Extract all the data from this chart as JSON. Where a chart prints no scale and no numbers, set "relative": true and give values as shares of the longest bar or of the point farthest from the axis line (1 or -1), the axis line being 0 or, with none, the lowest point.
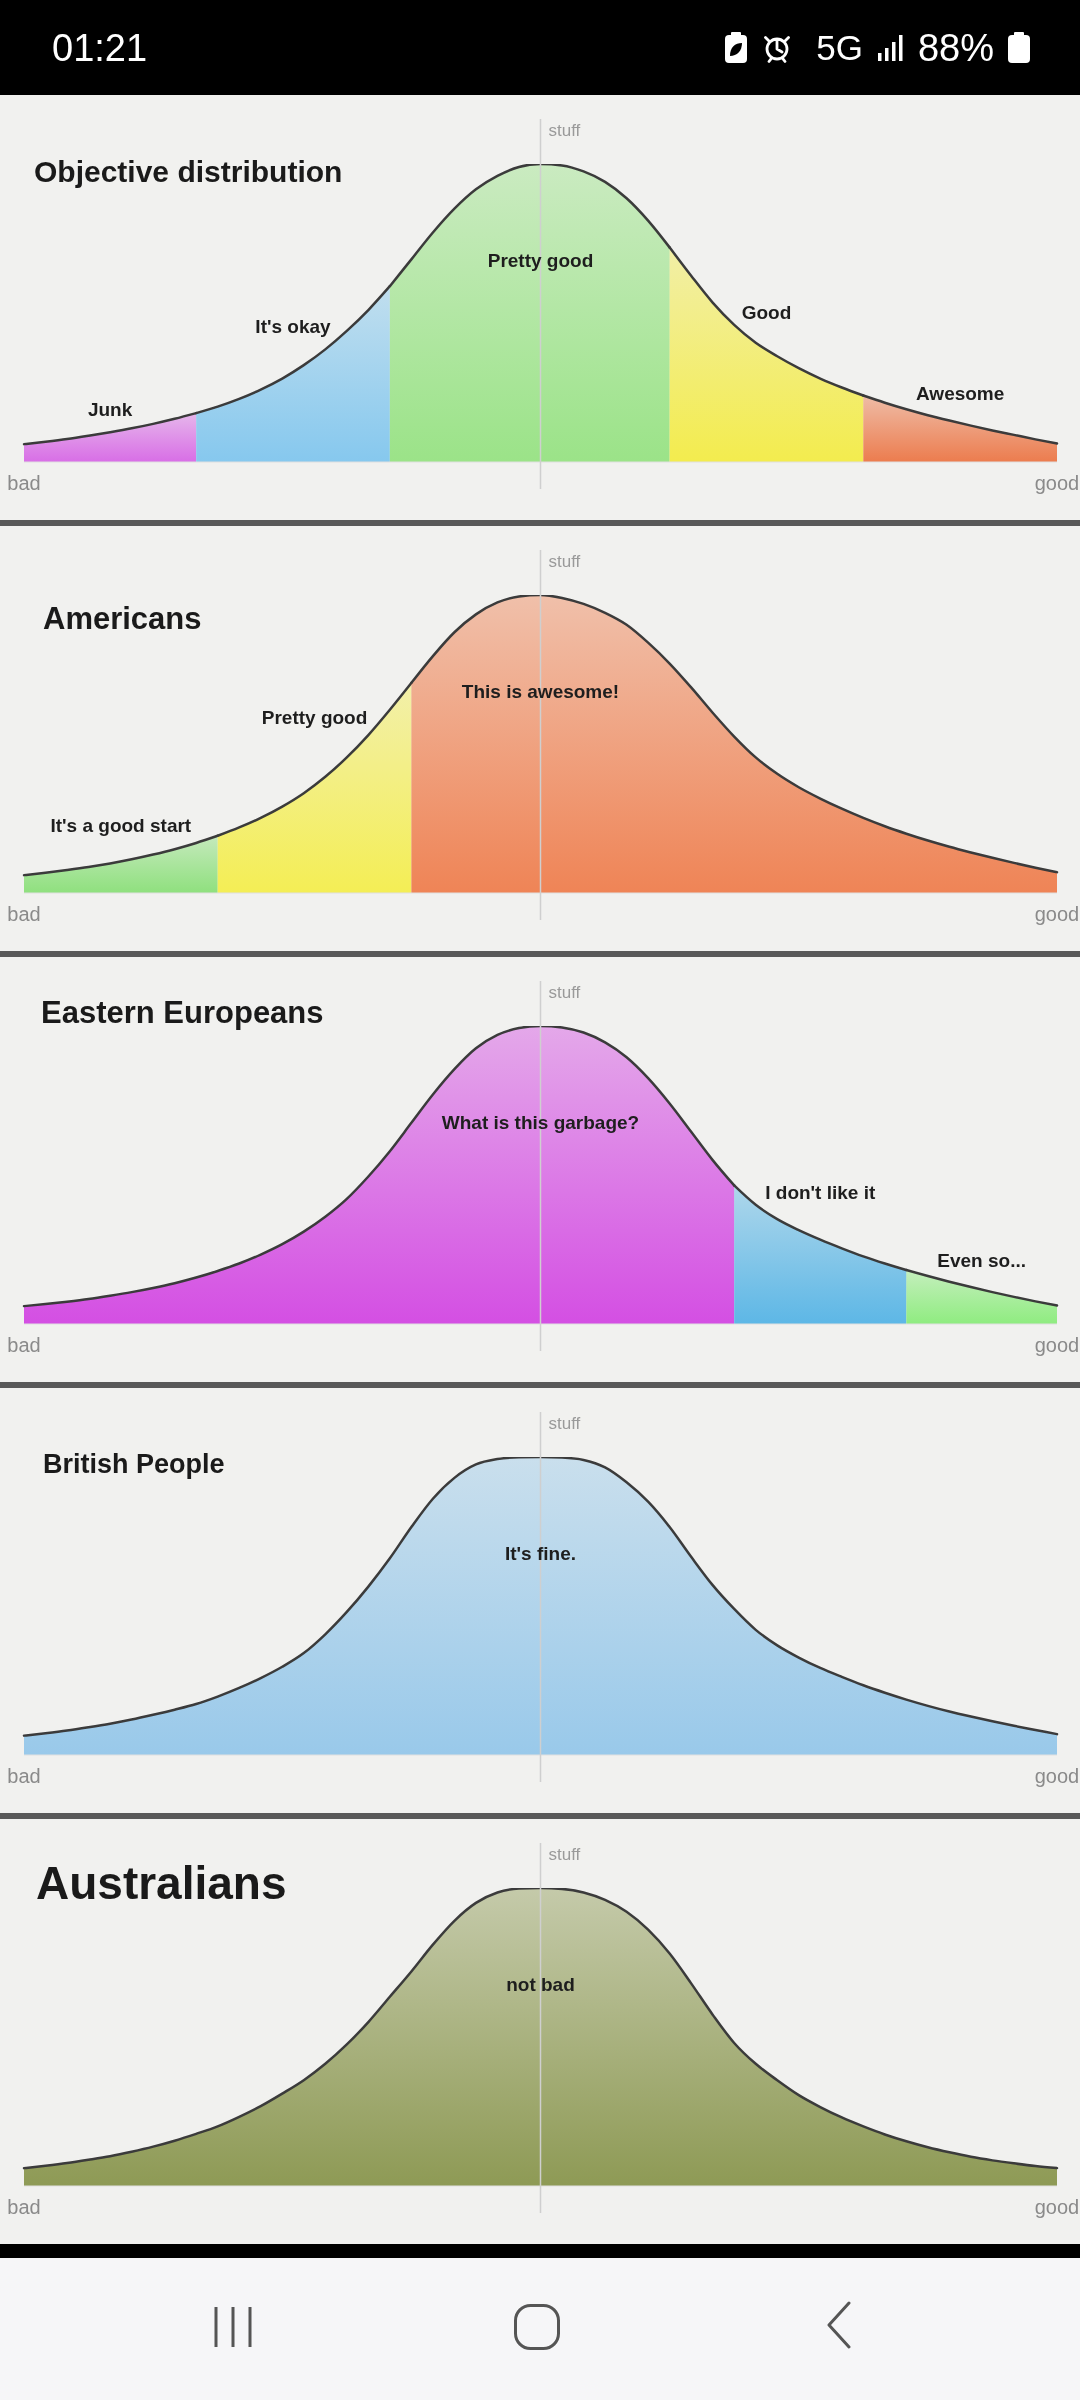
{
  "chart_data": [
    {
      "type": "area",
      "title": "Objective distribution",
      "ylabel": "stuff",
      "relative": true,
      "annotations": [
        "01:21",
        "5G",
        "88%"
      ],
      "categories": [
        "bad",
        null,
        null,
        null,
        null,
        null,
        null,
        null,
        null,
        null,
        null,
        null,
        null,
        null,
        null,
        null,
        null,
        null,
        null,
        null,
        null,
        null,
        null,
        null,
        null,
        null,
        null,
        null,
        null,
        null,
        null,
        null,
        null,
        null,
        null,
        null,
        null,
        null,
        null,
        null,
        null,
        null,
        null,
        null,
        null,
        null,
        null,
        null,
        "good"
      ],
      "series": [
        {
          "name": "Junk",
          "color": "#d86ee6",
          "values": [
            0.06,
            0.068,
            0.077,
            0.088,
            0.1,
            0.113,
            0.128,
            0.145,
            0.164,
            null,
            null,
            null,
            null,
            null,
            null,
            null,
            null,
            null,
            null,
            null,
            null,
            null,
            null,
            null,
            null,
            null,
            null,
            null,
            null,
            null,
            null,
            null,
            null,
            null,
            null,
            null,
            null,
            null,
            null,
            null,
            null,
            null,
            null,
            null,
            null,
            null,
            null,
            null,
            null
          ]
        },
        {
          "name": "It's okay",
          "color": "#86c8ee",
          "values": [
            null,
            null,
            null,
            null,
            null,
            null,
            null,
            null,
            0.164,
            0.186,
            0.212,
            0.243,
            0.28,
            0.325,
            0.378,
            0.44,
            0.51,
            0.59,
            null,
            null,
            null,
            null,
            null,
            null,
            null,
            null,
            null,
            null,
            null,
            null,
            null,
            null,
            null,
            null,
            null,
            null,
            null,
            null,
            null,
            null,
            null,
            null,
            null,
            null,
            null,
            null,
            null,
            null,
            null
          ]
        },
        {
          "name": "Pretty good",
          "color": "#9be388",
          "values": [
            null,
            null,
            null,
            null,
            null,
            null,
            null,
            null,
            null,
            null,
            null,
            null,
            null,
            null,
            null,
            null,
            null,
            0.59,
            0.68,
            0.77,
            0.85,
            0.915,
            0.96,
            0.99,
            1,
            0.995,
            0.975,
            0.94,
            0.885,
            0.81,
            0.72,
            null,
            null,
            null,
            null,
            null,
            null,
            null,
            null,
            null,
            null,
            null,
            null,
            null,
            null,
            null,
            null,
            null,
            null
          ]
        },
        {
          "name": "Good",
          "color": "#f3ec4e",
          "values": [
            null,
            null,
            null,
            null,
            null,
            null,
            null,
            null,
            null,
            null,
            null,
            null,
            null,
            null,
            null,
            null,
            null,
            null,
            null,
            null,
            null,
            null,
            null,
            null,
            null,
            null,
            null,
            null,
            null,
            null,
            0.72,
            0.625,
            0.535,
            0.46,
            0.4,
            0.355,
            0.315,
            0.28,
            0.25,
            0.223,
            null,
            null,
            null,
            null,
            null,
            null,
            null,
            null,
            null
          ]
        },
        {
          "name": "Awesome",
          "color": "#ec7c4e",
          "values": [
            null,
            null,
            null,
            null,
            null,
            null,
            null,
            null,
            null,
            null,
            null,
            null,
            null,
            null,
            null,
            null,
            null,
            null,
            null,
            null,
            null,
            null,
            null,
            null,
            null,
            null,
            null,
            null,
            null,
            null,
            null,
            null,
            null,
            null,
            null,
            null,
            null,
            null,
            null,
            0.223,
            0.199,
            0.177,
            0.157,
            0.139,
            0.122,
            0.106,
            0.091,
            0.076,
            0.062
          ]
        }
      ]
    },
    {
      "type": "area",
      "title": "Americans",
      "ylabel": "stuff",
      "relative": true,
      "categories": [
        "bad",
        null,
        null,
        null,
        null,
        null,
        null,
        null,
        null,
        null,
        null,
        null,
        null,
        null,
        null,
        null,
        null,
        null,
        null,
        null,
        null,
        null,
        null,
        null,
        null,
        null,
        null,
        null,
        null,
        null,
        null,
        null,
        null,
        null,
        null,
        null,
        null,
        null,
        null,
        null,
        null,
        null,
        null,
        null,
        null,
        null,
        null,
        null,
        "good"
      ],
      "series": [
        {
          "name": "It's a good start",
          "color": "#8fe07e",
          "values": [
            0.06,
            0.068,
            0.077,
            0.087,
            0.099,
            0.113,
            0.129,
            0.147,
            0.168,
            0.192,
            null,
            null,
            null,
            null,
            null,
            null,
            null,
            null,
            null,
            null,
            null,
            null,
            null,
            null,
            null,
            null,
            null,
            null,
            null,
            null,
            null,
            null,
            null,
            null,
            null,
            null,
            null,
            null,
            null,
            null,
            null,
            null,
            null,
            null,
            null,
            null,
            null,
            null,
            null
          ]
        },
        {
          "name": "Pretty good",
          "color": "#f4ee55",
          "values": [
            null,
            null,
            null,
            null,
            null,
            null,
            null,
            null,
            null,
            0.192,
            0.22,
            0.252,
            0.29,
            0.335,
            0.39,
            0.455,
            0.53,
            0.615,
            0.705,
            null,
            null,
            null,
            null,
            null,
            null,
            null,
            null,
            null,
            null,
            null,
            null,
            null,
            null,
            null,
            null,
            null,
            null,
            null,
            null,
            null,
            null,
            null,
            null,
            null,
            null,
            null,
            null,
            null,
            null
          ]
        },
        {
          "name": "This is awesome!",
          "color": "#ef8456",
          "values": [
            null,
            null,
            null,
            null,
            null,
            null,
            null,
            null,
            null,
            null,
            null,
            null,
            null,
            null,
            null,
            null,
            null,
            null,
            0.705,
            0.795,
            0.875,
            0.935,
            0.975,
            0.995,
            1,
            0.99,
            0.97,
            0.94,
            0.9,
            0.84,
            0.77,
            0.69,
            0.605,
            0.525,
            0.455,
            0.4,
            0.355,
            0.317,
            0.283,
            0.252,
            0.224,
            0.199,
            0.176,
            0.155,
            0.136,
            0.118,
            0.101,
            0.085,
            0.07
          ]
        }
      ]
    },
    {
      "type": "area",
      "title": "Eastern Europeans",
      "ylabel": "stuff",
      "relative": true,
      "categories": [
        "bad",
        null,
        null,
        null,
        null,
        null,
        null,
        null,
        null,
        null,
        null,
        null,
        null,
        null,
        null,
        null,
        null,
        null,
        null,
        null,
        null,
        null,
        null,
        null,
        null,
        null,
        null,
        null,
        null,
        null,
        null,
        null,
        null,
        null,
        null,
        null,
        null,
        null,
        null,
        null,
        null,
        null,
        null,
        null,
        null,
        null,
        null,
        null,
        "good"
      ],
      "series": [
        {
          "name": "What is this garbage?",
          "color": "#d44fe3",
          "values": [
            0.06,
            0.067,
            0.075,
            0.084,
            0.095,
            0.107,
            0.121,
            0.137,
            0.156,
            0.178,
            0.203,
            0.233,
            0.268,
            0.31,
            0.36,
            0.42,
            0.495,
            0.58,
            0.675,
            0.77,
            0.855,
            0.925,
            0.97,
            0.993,
            1,
            0.995,
            0.978,
            0.945,
            0.895,
            0.825,
            0.74,
            0.645,
            0.55,
            0.465,
            null,
            null,
            null,
            null,
            null,
            null,
            null,
            null,
            null,
            null,
            null,
            null,
            null,
            null,
            null
          ]
        },
        {
          "name": "I don't like it",
          "color": "#5db7e6",
          "values": [
            null,
            null,
            null,
            null,
            null,
            null,
            null,
            null,
            null,
            null,
            null,
            null,
            null,
            null,
            null,
            null,
            null,
            null,
            null,
            null,
            null,
            null,
            null,
            null,
            null,
            null,
            null,
            null,
            null,
            null,
            null,
            null,
            null,
            0.465,
            0.4,
            0.352,
            0.315,
            0.283,
            0.254,
            0.227,
            0.203,
            0.181,
            null,
            null,
            null,
            null,
            null,
            null,
            null
          ]
        },
        {
          "name": "Even so...",
          "color": "#8fec80",
          "values": [
            null,
            null,
            null,
            null,
            null,
            null,
            null,
            null,
            null,
            null,
            null,
            null,
            null,
            null,
            null,
            null,
            null,
            null,
            null,
            null,
            null,
            null,
            null,
            null,
            null,
            null,
            null,
            null,
            null,
            null,
            null,
            null,
            null,
            null,
            null,
            null,
            null,
            null,
            null,
            null,
            null,
            0.181,
            0.161,
            0.142,
            0.124,
            0.107,
            0.091,
            0.076,
            0.062
          ]
        }
      ]
    },
    {
      "type": "area",
      "title": "British People",
      "ylabel": "stuff",
      "relative": true,
      "categories": [
        "bad",
        null,
        null,
        null,
        null,
        null,
        null,
        null,
        null,
        null,
        null,
        null,
        null,
        null,
        null,
        null,
        null,
        null,
        null,
        null,
        null,
        null,
        null,
        null,
        null,
        null,
        null,
        null,
        null,
        null,
        null,
        null,
        null,
        null,
        null,
        null,
        null,
        null,
        null,
        null,
        null,
        null,
        null,
        null,
        null,
        null,
        null,
        null,
        "good"
      ],
      "series": [
        {
          "name": "It's fine.",
          "color": "#99c9ea",
          "values": [
            0.065,
            0.073,
            0.082,
            0.093,
            0.105,
            0.119,
            0.135,
            0.152,
            0.171,
            0.196,
            0.225,
            0.258,
            0.296,
            0.342,
            0.405,
            0.48,
            0.565,
            0.66,
            0.765,
            0.86,
            0.93,
            0.975,
            0.993,
            0.999,
            1,
            0.998,
            0.99,
            0.965,
            0.915,
            0.85,
            0.765,
            0.665,
            0.57,
            0.49,
            0.42,
            0.368,
            0.327,
            0.292,
            0.262,
            0.234,
            0.209,
            0.186,
            0.165,
            0.146,
            0.129,
            0.113,
            0.098,
            0.084,
            0.07
          ]
        }
      ]
    },
    {
      "type": "area",
      "title": "Australians",
      "ylabel": "stuff",
      "relative": true,
      "categories": [
        "bad",
        null,
        null,
        null,
        null,
        null,
        null,
        null,
        null,
        null,
        null,
        null,
        null,
        null,
        null,
        null,
        null,
        null,
        null,
        null,
        null,
        null,
        null,
        null,
        null,
        null,
        null,
        null,
        null,
        null,
        null,
        null,
        null,
        null,
        null,
        null,
        null,
        null,
        null,
        null,
        null,
        null,
        null,
        null,
        null,
        null,
        null,
        null,
        "good"
      ],
      "series": [
        {
          "name": "not bad",
          "color": "#8e9a55",
          "values": [
            0.06,
            0.068,
            0.077,
            0.088,
            0.1,
            0.115,
            0.132,
            0.152,
            0.175,
            0.2,
            0.232,
            0.268,
            0.31,
            0.355,
            0.41,
            0.475,
            0.55,
            0.635,
            0.72,
            0.81,
            0.89,
            0.95,
            0.985,
            0.998,
            1,
            0.997,
            0.985,
            0.96,
            0.92,
            0.86,
            0.78,
            0.68,
            0.575,
            0.48,
            0.41,
            0.355,
            0.305,
            0.265,
            0.23,
            0.2,
            0.173,
            0.15,
            0.13,
            0.113,
            0.098,
            0.086,
            0.076,
            0.067,
            0.06
          ]
        }
      ]
    }
  ]
}
